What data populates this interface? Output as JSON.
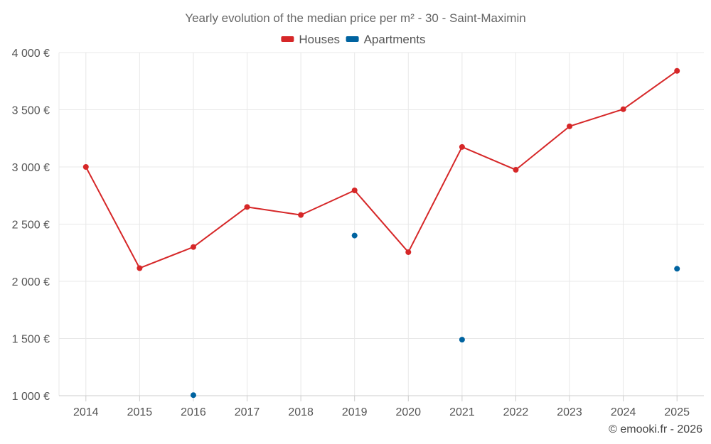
{
  "chart_data": {
    "type": "line",
    "title": "Yearly evolution of the median price per m² - 30 - Saint-Maximin",
    "categories": [
      "2014",
      "2015",
      "2016",
      "2017",
      "2018",
      "2019",
      "2020",
      "2021",
      "2022",
      "2023",
      "2024",
      "2025"
    ],
    "series": [
      {
        "name": "Houses",
        "color": "#d62728",
        "values": [
          3000,
          2115,
          2300,
          2650,
          2580,
          2795,
          2255,
          3175,
          2975,
          3355,
          3505,
          3840
        ]
      },
      {
        "name": "Apartments",
        "color": "#0063a0",
        "values": [
          null,
          null,
          1005,
          null,
          null,
          2400,
          null,
          1490,
          null,
          null,
          null,
          2110
        ]
      }
    ],
    "ylim": [
      1000,
      4000
    ],
    "yticks": [
      1000,
      1500,
      2000,
      2500,
      3000,
      3500,
      4000
    ],
    "ytick_labels": [
      "1 000 €",
      "1 500 €",
      "2 000 €",
      "2 500 €",
      "3 000 €",
      "3 500 €",
      "4 000 €"
    ],
    "xlabel": "",
    "ylabel": "",
    "grid": true,
    "legend_position": "top-center"
  },
  "credit": "© emooki.fr - 2026"
}
